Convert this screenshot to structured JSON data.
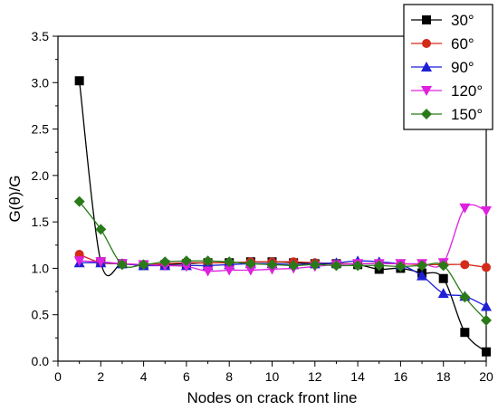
{
  "chart_data": {
    "type": "line",
    "title": "",
    "xlabel": "Nodes on crack front line",
    "ylabel": "G(θ)/G",
    "xlim": [
      0,
      20
    ],
    "ylim": [
      0.0,
      3.5
    ],
    "xticks": [
      "0",
      "2",
      "4",
      "6",
      "8",
      "10",
      "12",
      "14",
      "16",
      "18",
      "20"
    ],
    "yticks": [
      "0.0",
      "0.5",
      "1.0",
      "1.5",
      "2.0",
      "2.5",
      "3.0",
      "3.5"
    ],
    "legend_position": "top-right",
    "x": [
      1,
      2,
      3,
      4,
      5,
      6,
      7,
      8,
      9,
      10,
      11,
      12,
      13,
      14,
      15,
      16,
      17,
      18,
      19,
      20
    ],
    "series": [
      {
        "name": "30°",
        "color": "#000000",
        "marker": "square",
        "values": [
          3.02,
          1.07,
          1.05,
          1.03,
          1.04,
          1.05,
          1.06,
          1.06,
          1.07,
          1.07,
          1.06,
          1.05,
          1.05,
          1.04,
          0.99,
          1.0,
          0.95,
          0.89,
          0.31,
          0.1
        ]
      },
      {
        "name": "60°",
        "color": "#d42a1a",
        "marker": "circle",
        "values": [
          1.15,
          1.06,
          1.05,
          1.04,
          1.05,
          1.06,
          1.06,
          1.06,
          1.07,
          1.07,
          1.07,
          1.06,
          1.05,
          1.05,
          1.05,
          1.05,
          1.04,
          1.04,
          1.04,
          1.01
        ]
      },
      {
        "name": "90°",
        "color": "#1f1fd6",
        "marker": "triangle-up",
        "values": [
          1.06,
          1.06,
          1.05,
          1.03,
          1.03,
          1.03,
          1.03,
          1.04,
          1.05,
          1.05,
          1.04,
          1.05,
          1.06,
          1.08,
          1.07,
          1.04,
          0.92,
          0.73,
          0.7,
          0.59
        ]
      },
      {
        "name": "120°",
        "color": "#e020e0",
        "marker": "triangle-down",
        "values": [
          1.08,
          1.07,
          1.05,
          1.04,
          1.03,
          1.02,
          0.97,
          0.98,
          0.98,
          0.99,
          1.0,
          1.02,
          1.04,
          1.05,
          1.05,
          1.05,
          1.05,
          1.06,
          1.65,
          1.62
        ]
      },
      {
        "name": "150°",
        "color": "#2a7a1a",
        "marker": "diamond",
        "values": [
          1.72,
          1.42,
          1.04,
          1.04,
          1.07,
          1.08,
          1.08,
          1.07,
          1.05,
          1.04,
          1.03,
          1.04,
          1.03,
          1.03,
          1.03,
          1.02,
          1.03,
          1.03,
          0.69,
          0.44
        ]
      }
    ]
  }
}
